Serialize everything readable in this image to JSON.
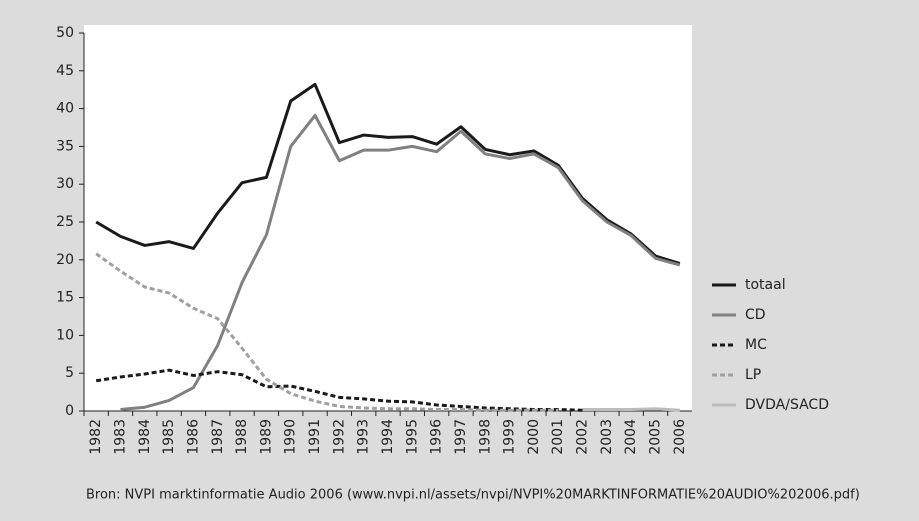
{
  "chart_data": {
    "type": "line",
    "categories": [
      "1982",
      "1983",
      "1984",
      "1985",
      "1986",
      "1987",
      "1988",
      "1989",
      "1990",
      "1991",
      "1992",
      "1993",
      "1994",
      "1995",
      "1996",
      "1997",
      "1998",
      "1999",
      "2000",
      "2001",
      "2002",
      "2003",
      "2004",
      "2005",
      "2006"
    ],
    "series": [
      {
        "name": "totaal",
        "color": "#1a1a1a",
        "dashed": false,
        "values": [
          25,
          23.1,
          21.9,
          22.4,
          21.5,
          26.2,
          30.2,
          30.9,
          41,
          43.2,
          35.5,
          36.5,
          36.2,
          36.3,
          35.3,
          37.6,
          34.6,
          33.9,
          34.4,
          32.5,
          28.1,
          25.3,
          23.4,
          20.5,
          19.5
        ]
      },
      {
        "name": "CD",
        "color": "#808080",
        "dashed": false,
        "values": [
          null,
          0.2,
          0.5,
          1.4,
          3.1,
          8.7,
          17,
          23.3,
          35,
          39.1,
          33.1,
          34.5,
          34.5,
          35,
          34.3,
          37,
          34,
          33.4,
          34,
          32.2,
          27.8,
          25,
          23.2,
          20.2,
          19.3
        ]
      },
      {
        "name": "MC",
        "color": "#1a1a1a",
        "dashed": true,
        "values": [
          4,
          4.5,
          4.9,
          5.4,
          4.7,
          5.2,
          4.8,
          3.2,
          3.3,
          2.6,
          1.8,
          1.6,
          1.3,
          1.2,
          0.8,
          0.6,
          0.4,
          0.3,
          0.2,
          0.2,
          0.1,
          null,
          null,
          null,
          null
        ]
      },
      {
        "name": "LP",
        "color": "#a0a0a0",
        "dashed": true,
        "values": [
          20.8,
          18.5,
          16.4,
          15.6,
          13.6,
          12.2,
          8.3,
          4.2,
          2.3,
          1.3,
          0.6,
          0.4,
          0.3,
          0.3,
          0.2,
          0.2,
          0.1,
          0.1,
          0.1,
          0.1,
          null,
          null,
          null,
          null,
          null
        ]
      },
      {
        "name": "DVDA/SACD",
        "color": "#bcbcbc",
        "dashed": false,
        "values": [
          null,
          null,
          null,
          null,
          null,
          null,
          null,
          null,
          null,
          null,
          null,
          null,
          null,
          null,
          null,
          null,
          null,
          null,
          null,
          null,
          0.2,
          0.2,
          0.2,
          0.3,
          0.1
        ]
      }
    ],
    "ylim": [
      0,
      50
    ],
    "yticks": [
      0,
      5,
      10,
      15,
      20,
      25,
      30,
      35,
      40,
      45,
      50
    ],
    "legend": "right",
    "source": "Bron: NVPI marktinformatie Audio 2006 (www.nvpi.nl/assets/nvpi/NVPI%20MARKTINFORMATIE%20AUDIO%202006.pdf)"
  }
}
